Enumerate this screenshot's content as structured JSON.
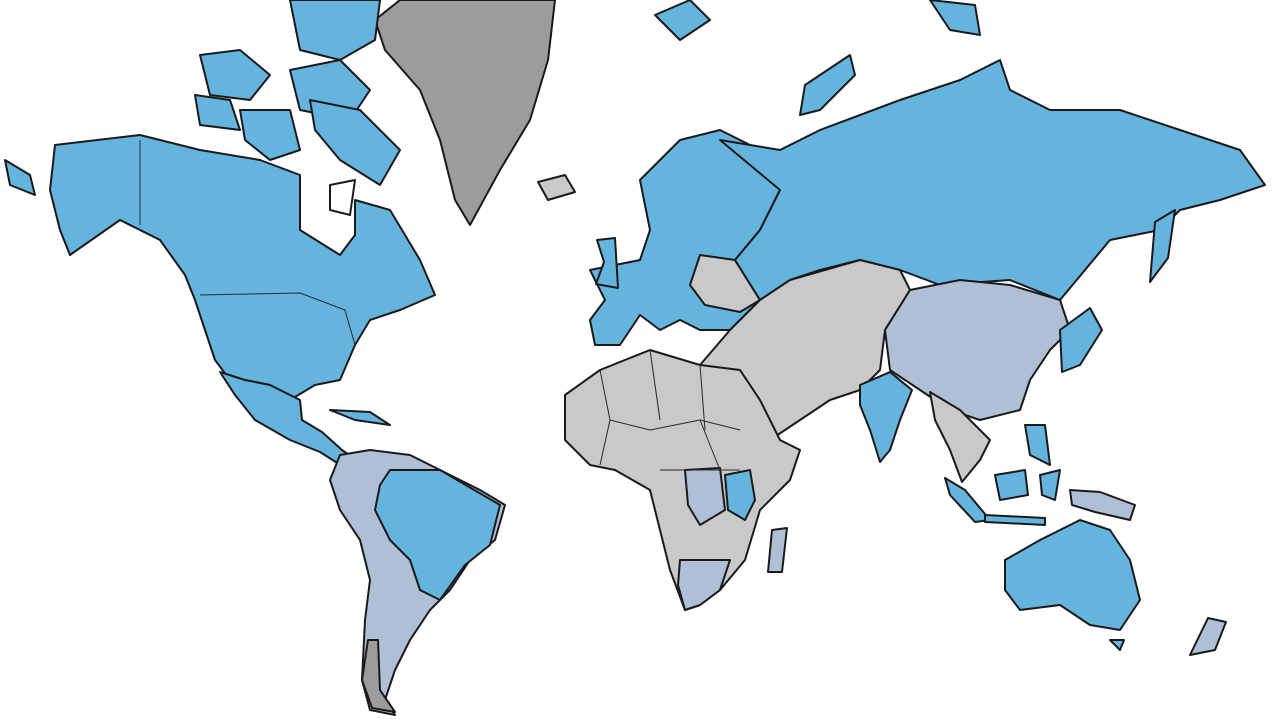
{
  "map": {
    "type": "choropleth-world",
    "projection": "mercator",
    "colors": {
      "highlighted": "#64b4dd",
      "partial": "#aebfd6",
      "none": "#c9c9c9",
      "greenland": "#9c9c9c",
      "ocean": "#ffffff",
      "outline": "#1a1a1a"
    },
    "region_fills": {
      "north-america": "highlighted",
      "arctic-islands": "highlighted",
      "mexico-central-america": "highlighted",
      "greenland": "greenland",
      "iceland": "none",
      "south-america": "partial",
      "brazil-region": "highlighted",
      "chile": "greenland",
      "europe": "highlighted",
      "uk": "highlighted",
      "eastern-europe": "none",
      "russia": "highlighted",
      "kamchatka": "highlighted",
      "middle-east-central-asia": "none",
      "china": "partial",
      "india": "highlighted",
      "southeast-asia": "none",
      "japan": "highlighted",
      "indonesia": "highlighted",
      "new-guinea": "partial",
      "africa": "none",
      "central-africa": "partial",
      "east-africa": "highlighted",
      "southern-africa": "partial",
      "madagascar": "partial",
      "australia": "highlighted",
      "new-zealand": "partial"
    }
  }
}
